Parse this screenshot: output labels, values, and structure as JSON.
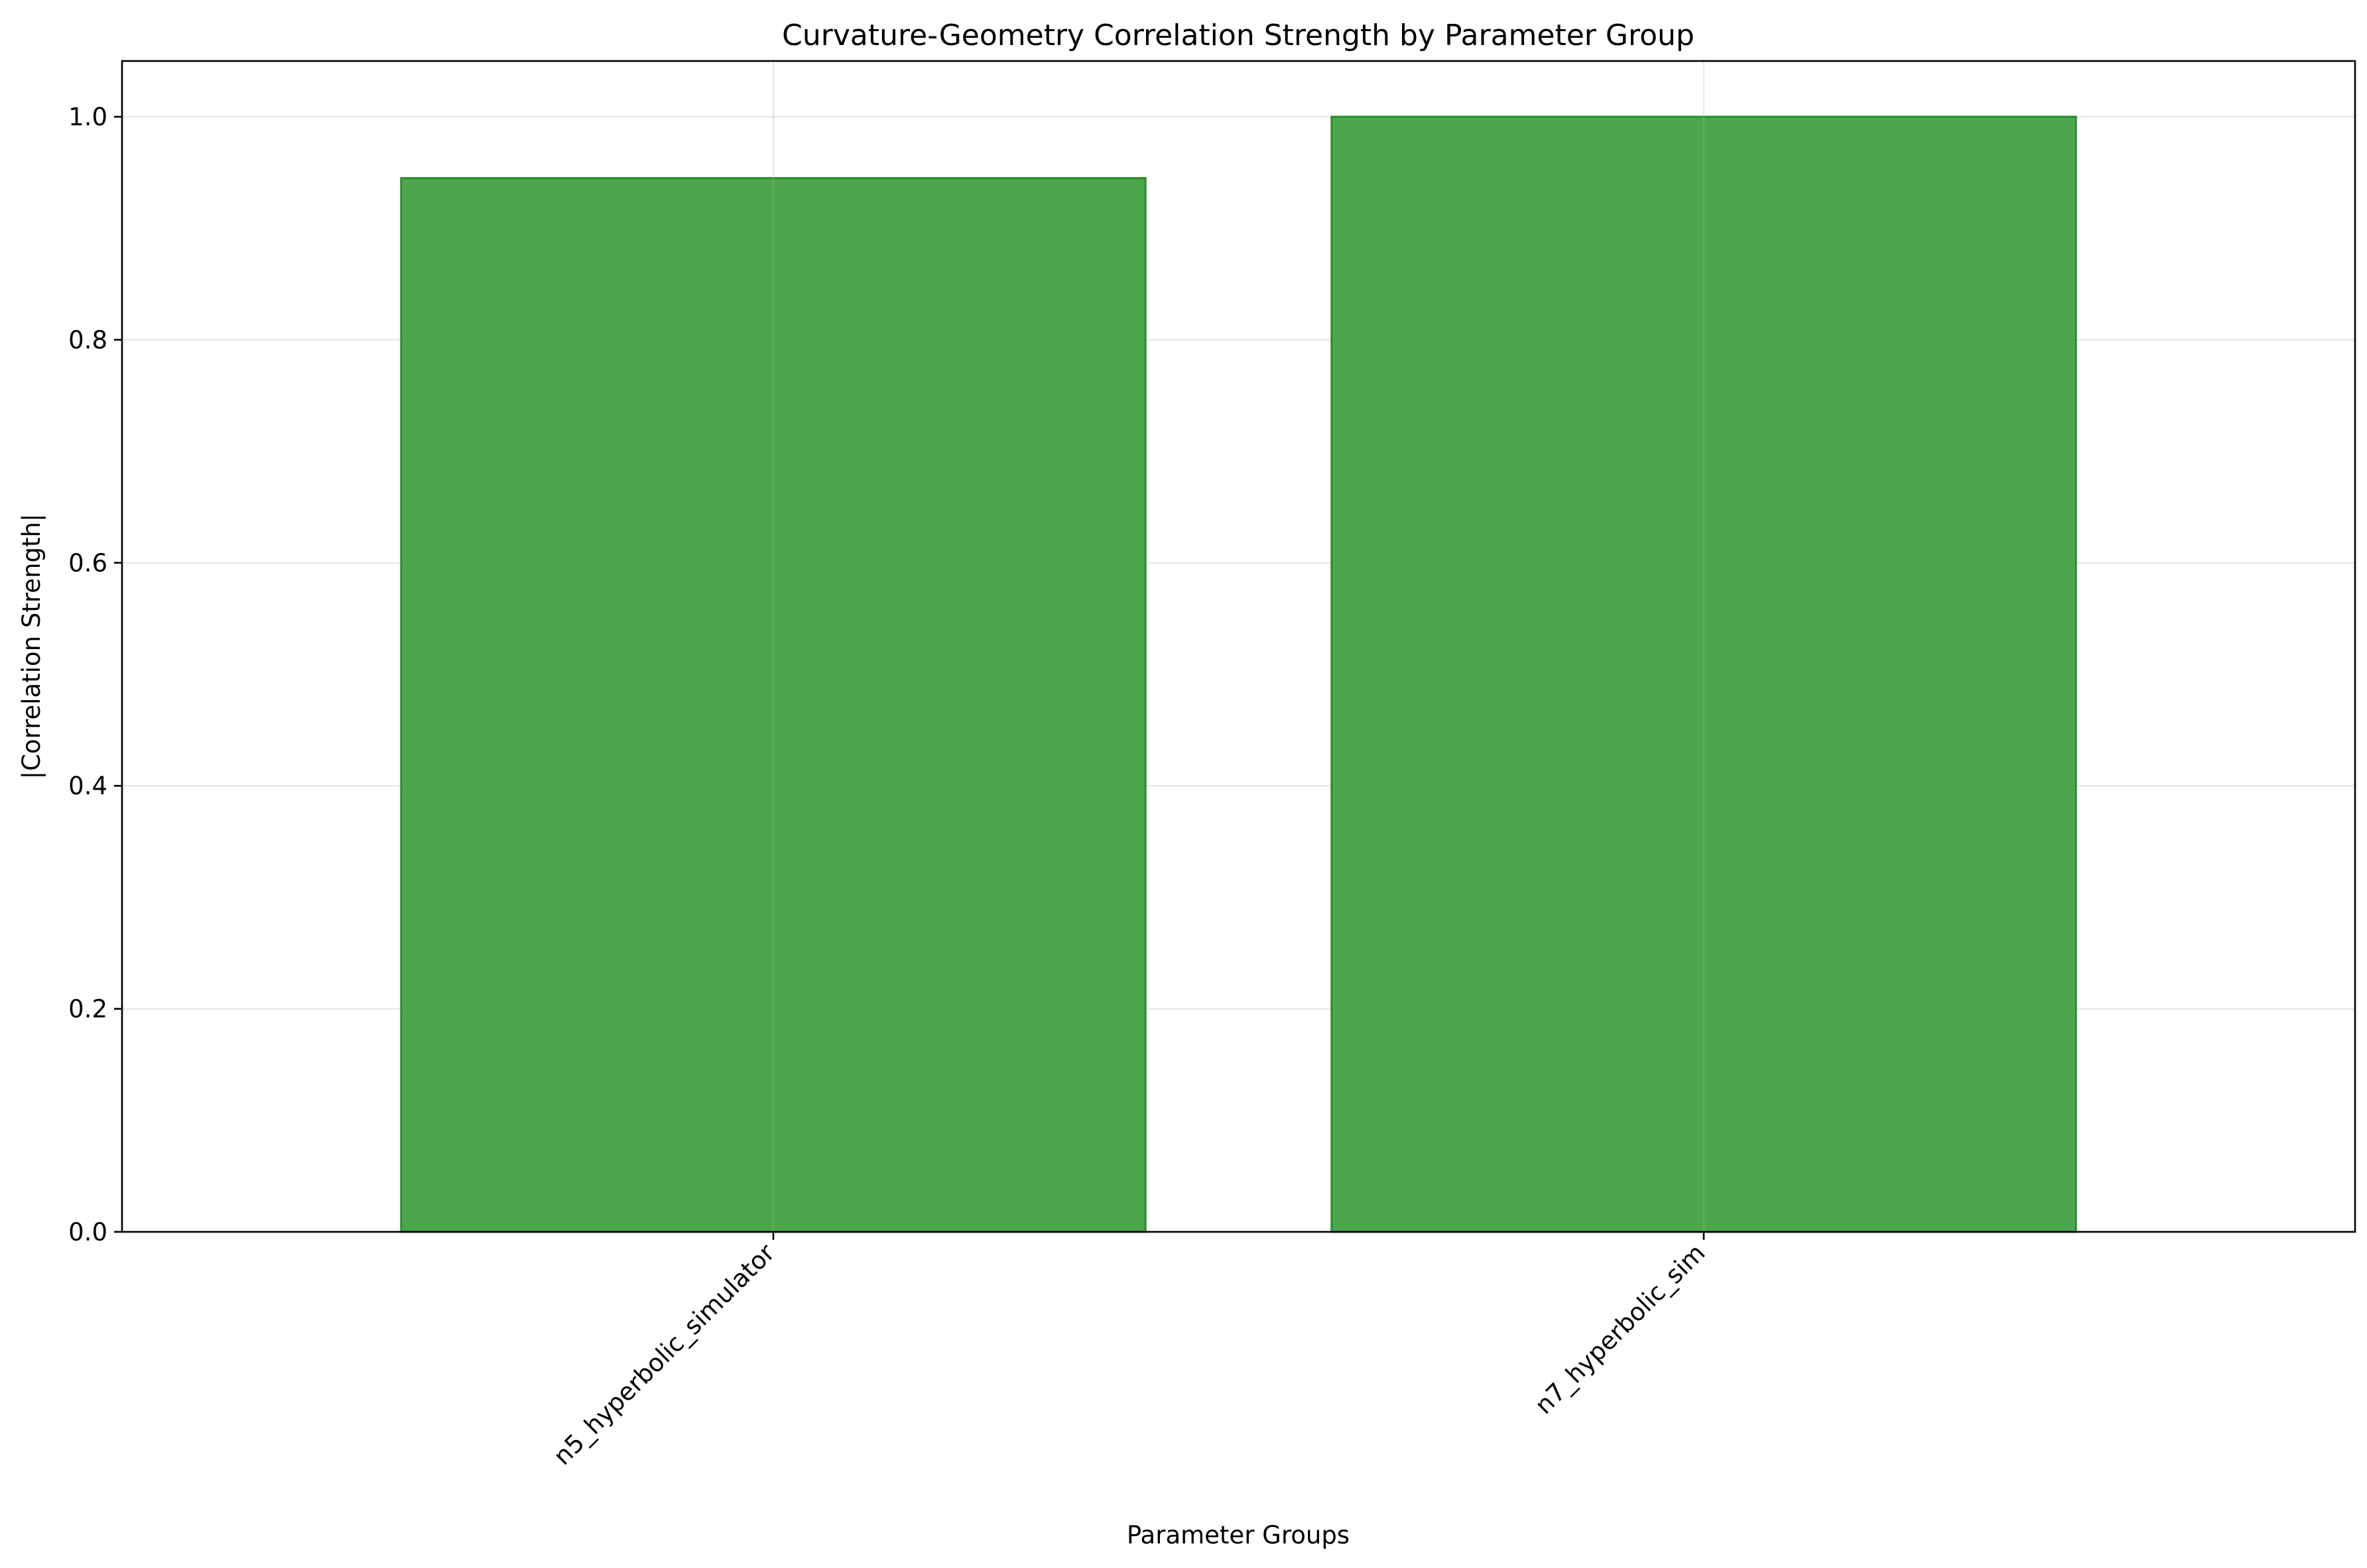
{
  "chart_data": {
    "type": "bar",
    "title": "Curvature-Geometry Correlation Strength by Parameter Group",
    "xlabel": "Parameter Groups",
    "ylabel": "|Correlation Strength|",
    "categories": [
      "n5_hyperbolic_simulator",
      "n7_hyperbolic_sim"
    ],
    "values": [
      0.945,
      1.0
    ],
    "ylim": [
      0,
      1.05
    ],
    "yticks": [
      0.0,
      0.2,
      0.4,
      0.6,
      0.8,
      1.0
    ],
    "ytick_labels": [
      "0.0",
      "0.2",
      "0.4",
      "0.6",
      "0.8",
      "1.0"
    ],
    "grid": true,
    "bar_color": "#4ca64c",
    "bar_edge_color": "#2e8b2e",
    "x_tick_rotation": 45
  }
}
